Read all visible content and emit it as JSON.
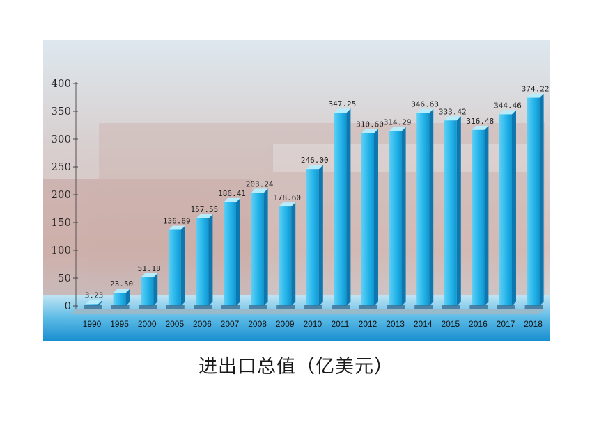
{
  "caption": "进出口总值（亿美元）",
  "chart_data": {
    "type": "bar",
    "title": "",
    "xlabel": "",
    "ylabel": "",
    "ylim": [
      0,
      400
    ],
    "yticks": [
      0,
      50,
      100,
      150,
      200,
      250,
      300,
      350,
      400
    ],
    "grid": false,
    "bar_color": "#1ea8e0",
    "categories": [
      "1990",
      "1995",
      "2000",
      "2005",
      "2006",
      "2007",
      "2008",
      "2009",
      "2010",
      "2011",
      "2012",
      "2013",
      "2014",
      "2015",
      "2016",
      "2017",
      "2018"
    ],
    "values": [
      3.23,
      23.5,
      51.18,
      136.89,
      157.55,
      186.41,
      203.24,
      178.6,
      246.0,
      347.25,
      310.6,
      314.29,
      346.63,
      333.42,
      316.48,
      344.46,
      374.22
    ],
    "value_labels": [
      "3.23",
      "23.50",
      "51.18",
      "136.89",
      "157.55",
      "186.41",
      "203.24",
      "178.60",
      "246.00",
      "347.25",
      "310.60",
      "314.29",
      "346.63",
      "333.42",
      "316.48",
      "344.46",
      "374.22"
    ]
  }
}
